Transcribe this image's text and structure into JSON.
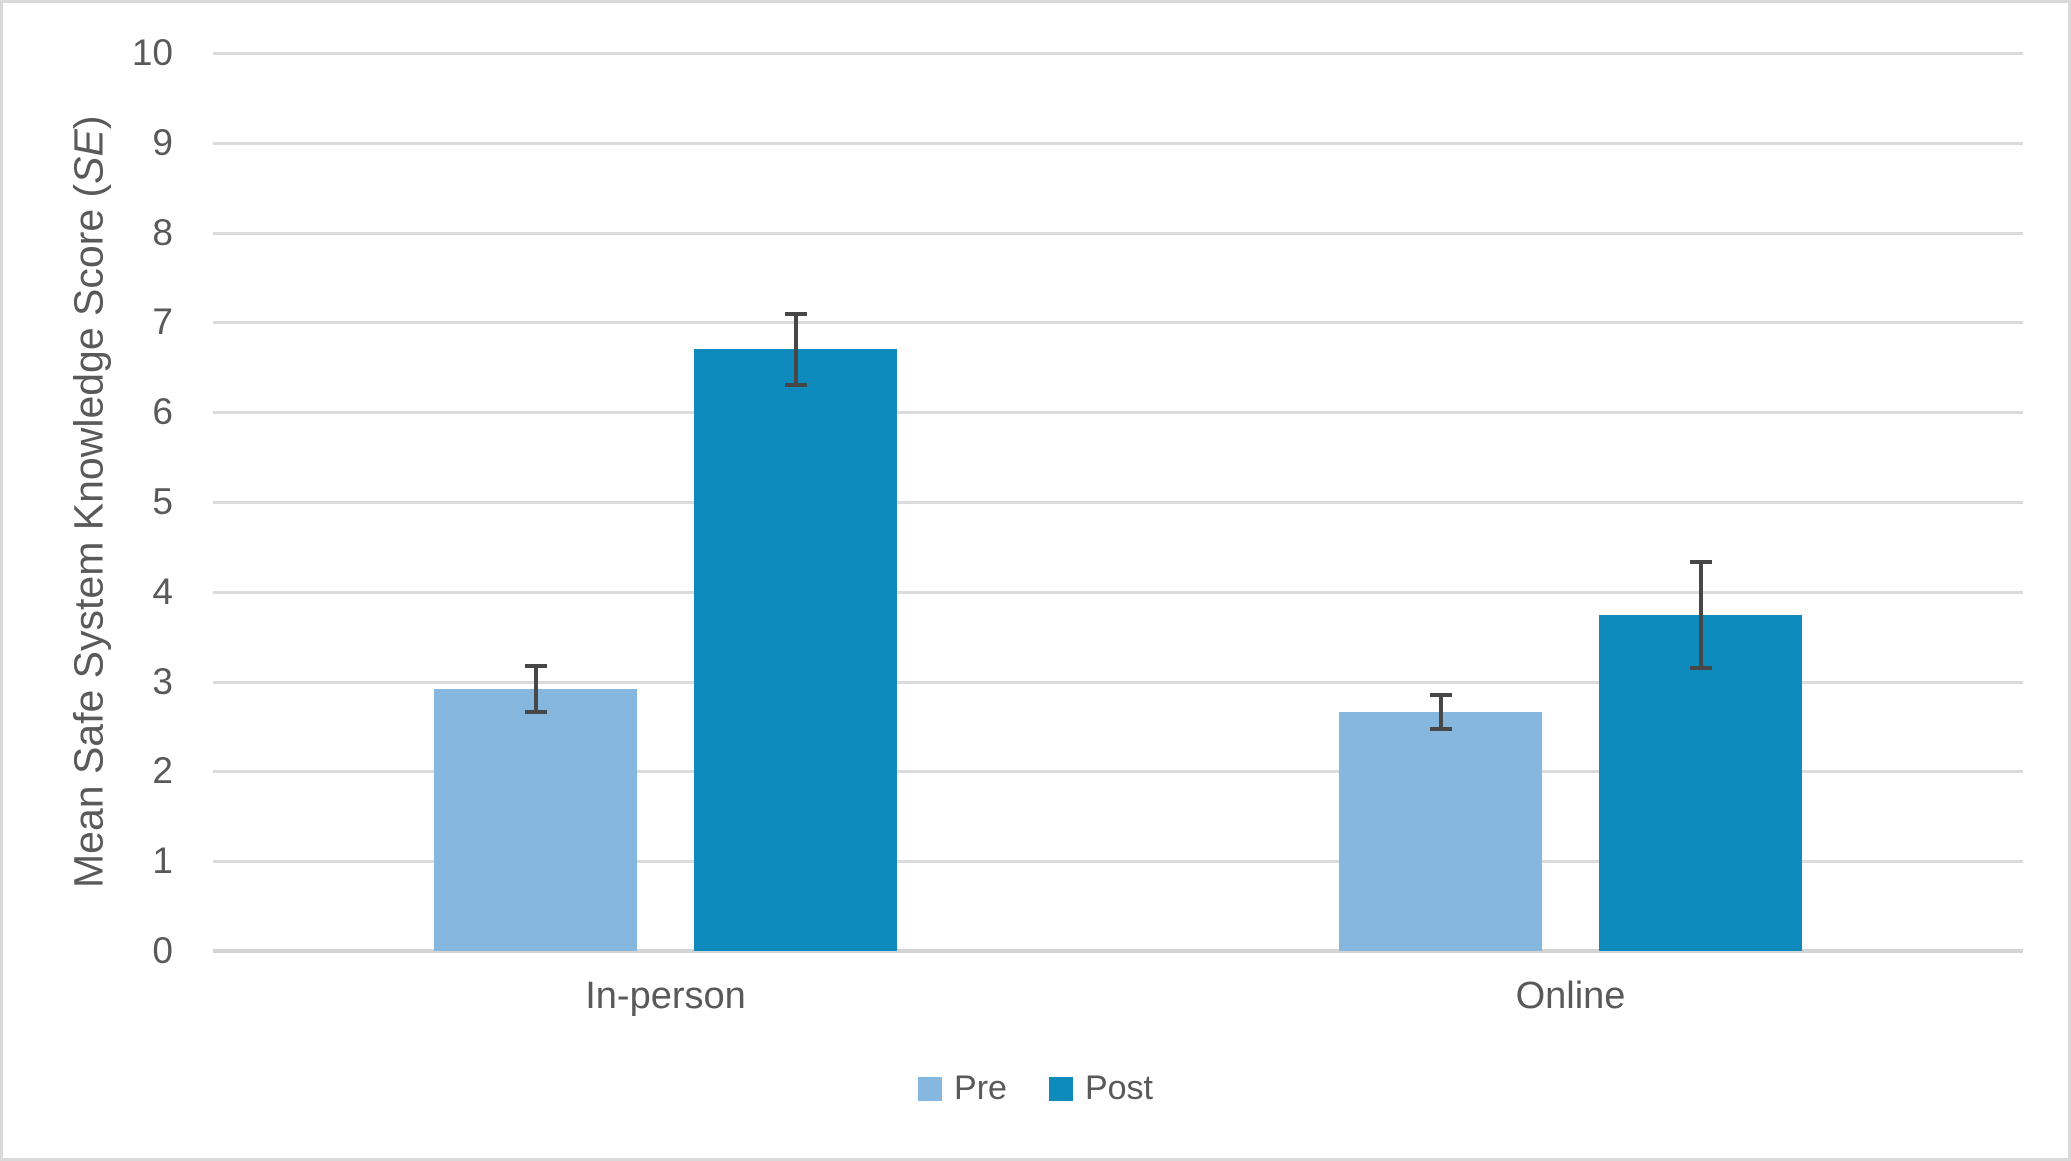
{
  "chart_data": {
    "type": "bar",
    "title": "",
    "categories": [
      "In-person",
      "Online"
    ],
    "series": [
      {
        "name": "Pre",
        "color": "#85B7DF",
        "values": [
          2.92,
          2.66
        ],
        "errors": [
          0.28,
          0.21
        ]
      },
      {
        "name": "Post",
        "color": "#0E8ABD",
        "values": [
          6.7,
          3.74
        ],
        "errors": [
          0.42,
          0.61
        ]
      }
    ],
    "xlabel": "",
    "ylabel_prefix": "Mean Safe System Knowledge Score (",
    "ylabel_italic": "SE",
    "ylabel_suffix": ")",
    "ylim": [
      0,
      10
    ],
    "ytick_step": 1,
    "yticks": [
      "0",
      "1",
      "2",
      "3",
      "4",
      "5",
      "6",
      "7",
      "8",
      "9",
      "10"
    ],
    "grid": true,
    "legend_position": "bottom",
    "legend_labels": [
      "Pre",
      "Post"
    ],
    "colors": {
      "text": "#595959",
      "gridline": "#DBDBDB",
      "axis_line": "#D4D4D4",
      "error_bar": "#474747",
      "background": "#FFFFFF",
      "border": "#D9D9D9"
    }
  }
}
